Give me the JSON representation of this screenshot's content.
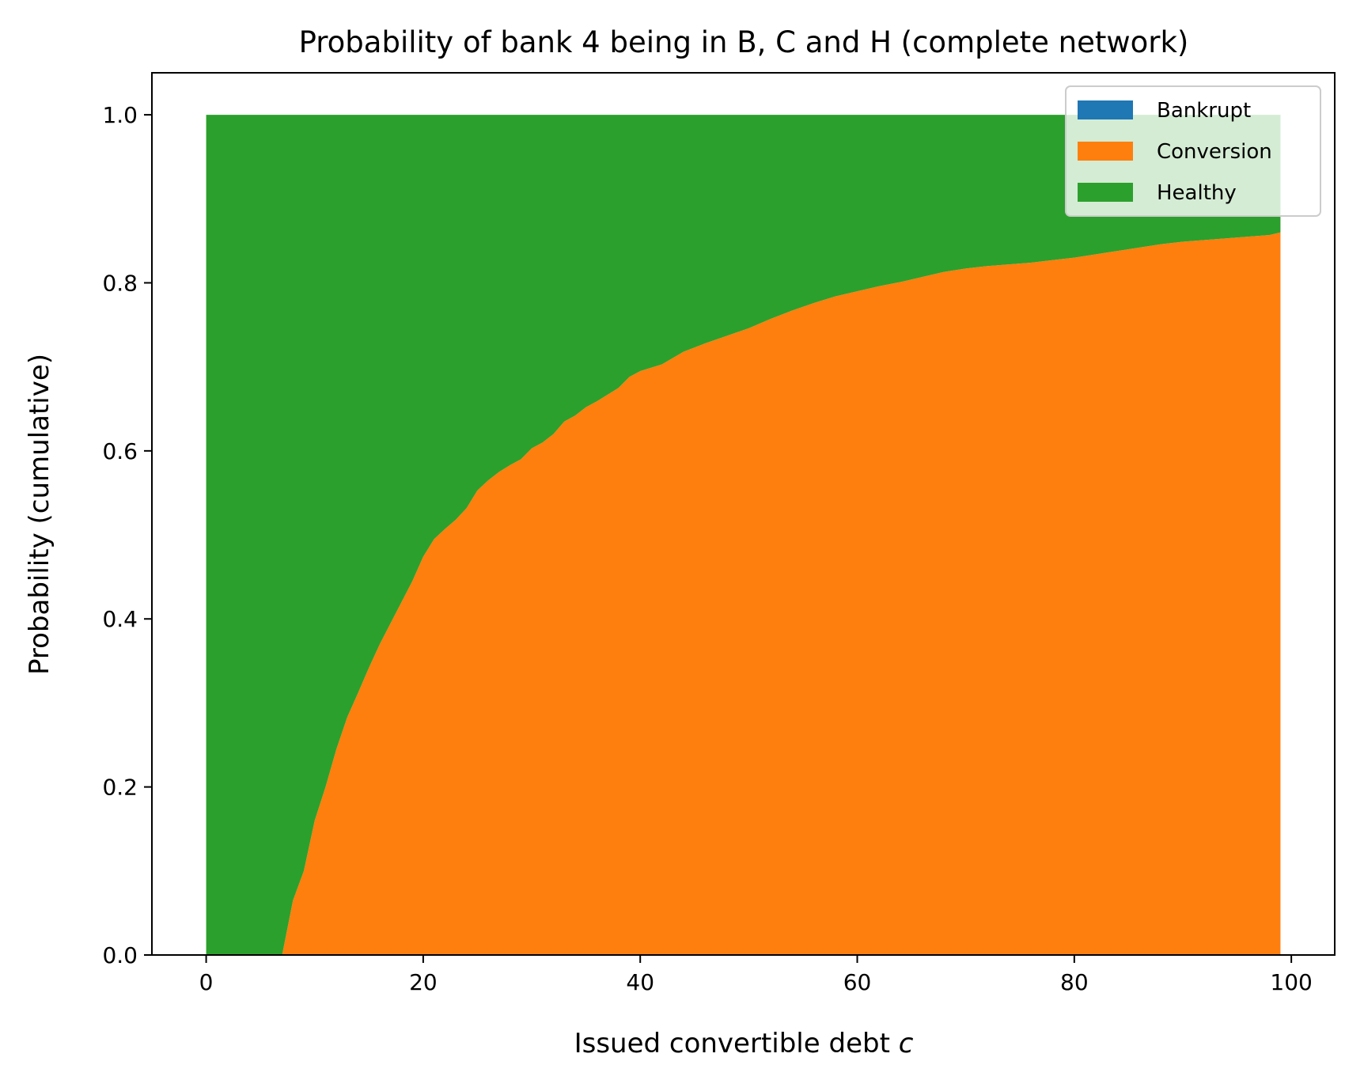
{
  "chart_data": {
    "type": "area",
    "stacked": true,
    "title": "Probability of bank 4 being in B, C and H (complete network)",
    "xlabel": "Issued convertible debt ",
    "xlabel_var": "c",
    "ylabel": "Probability (cumulative)",
    "xlim": [
      -5,
      104
    ],
    "ylim": [
      0,
      1.05
    ],
    "xticks": [
      0,
      20,
      40,
      60,
      80,
      100
    ],
    "yticks": [
      0.0,
      0.2,
      0.4,
      0.6,
      0.8,
      1.0
    ],
    "xtick_labels": [
      "0",
      "20",
      "40",
      "60",
      "80",
      "100"
    ],
    "ytick_labels": [
      "0.0",
      "0.2",
      "0.4",
      "0.6",
      "0.8",
      "1.0"
    ],
    "grid": false,
    "legend_position": "top-right",
    "x": [
      0,
      7,
      8,
      9,
      10,
      11,
      12,
      13,
      14,
      15,
      16,
      17,
      18,
      19,
      20,
      21,
      22,
      23,
      24,
      25,
      26,
      27,
      28,
      29,
      30,
      31,
      32,
      33,
      34,
      35,
      36,
      37,
      38,
      39,
      40,
      42,
      44,
      46,
      48,
      50,
      52,
      54,
      56,
      58,
      60,
      62,
      64,
      66,
      68,
      70,
      72,
      74,
      76,
      78,
      80,
      82,
      84,
      86,
      88,
      90,
      92,
      94,
      96,
      98,
      99
    ],
    "series": [
      {
        "name": "Bankrupt",
        "color": "#1f77b4",
        "values": [
          0,
          0,
          0,
          0,
          0,
          0,
          0,
          0,
          0,
          0,
          0,
          0,
          0,
          0,
          0,
          0,
          0,
          0,
          0,
          0,
          0,
          0,
          0,
          0,
          0,
          0,
          0,
          0,
          0,
          0,
          0,
          0,
          0,
          0,
          0,
          0,
          0,
          0,
          0,
          0,
          0,
          0,
          0,
          0,
          0,
          0,
          0,
          0,
          0,
          0,
          0,
          0,
          0,
          0,
          0,
          0,
          0,
          0,
          0,
          0,
          0,
          0,
          0,
          0,
          0
        ]
      },
      {
        "name": "Conversion",
        "color": "#ff7f0e",
        "values": [
          0,
          0,
          0.065,
          0.1,
          0.16,
          0.2,
          0.245,
          0.283,
          0.312,
          0.342,
          0.37,
          0.395,
          0.42,
          0.445,
          0.474,
          0.495,
          0.507,
          0.518,
          0.532,
          0.553,
          0.565,
          0.575,
          0.583,
          0.59,
          0.603,
          0.61,
          0.62,
          0.635,
          0.642,
          0.652,
          0.659,
          0.667,
          0.675,
          0.688,
          0.695,
          0.703,
          0.718,
          0.728,
          0.737,
          0.746,
          0.757,
          0.767,
          0.776,
          0.784,
          0.79,
          0.796,
          0.801,
          0.807,
          0.813,
          0.817,
          0.82,
          0.822,
          0.824,
          0.827,
          0.83,
          0.834,
          0.838,
          0.842,
          0.846,
          0.849,
          0.851,
          0.853,
          0.855,
          0.857,
          0.86
        ]
      },
      {
        "name": "Healthy",
        "color": "#2ca02c",
        "values": [
          1,
          1,
          0.935,
          0.9,
          0.84,
          0.8,
          0.755,
          0.717,
          0.688,
          0.658,
          0.63,
          0.605,
          0.58,
          0.555,
          0.526,
          0.505,
          0.493,
          0.482,
          0.468,
          0.447,
          0.435,
          0.425,
          0.417,
          0.41,
          0.397,
          0.39,
          0.38,
          0.365,
          0.358,
          0.348,
          0.341,
          0.333,
          0.325,
          0.312,
          0.305,
          0.297,
          0.282,
          0.272,
          0.263,
          0.254,
          0.243,
          0.233,
          0.224,
          0.216,
          0.21,
          0.204,
          0.199,
          0.193,
          0.187,
          0.183,
          0.18,
          0.178,
          0.176,
          0.173,
          0.17,
          0.166,
          0.162,
          0.158,
          0.154,
          0.151,
          0.149,
          0.147,
          0.145,
          0.143,
          0.14
        ]
      }
    ]
  }
}
